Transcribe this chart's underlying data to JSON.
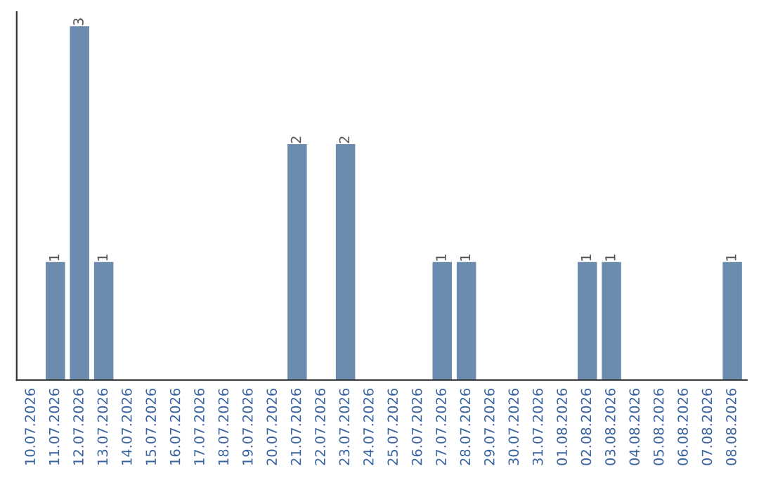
{
  "chart_data": {
    "type": "bar",
    "categories": [
      "10.07.2026",
      "11.07.2026",
      "12.07.2026",
      "13.07.2026",
      "14.07.2026",
      "15.07.2026",
      "16.07.2026",
      "17.07.2026",
      "18.07.2026",
      "19.07.2026",
      "20.07.2026",
      "21.07.2026",
      "22.07.2026",
      "23.07.2026",
      "24.07.2026",
      "25.07.2026",
      "26.07.2026",
      "27.07.2026",
      "28.07.2026",
      "29.07.2026",
      "30.07.2026",
      "31.07.2026",
      "01.08.2026",
      "02.08.2026",
      "03.08.2026",
      "04.08.2026",
      "05.08.2026",
      "06.08.2026",
      "07.08.2026",
      "08.08.2026"
    ],
    "values": [
      0,
      1,
      3,
      1,
      0,
      0,
      0,
      0,
      0,
      0,
      0,
      2,
      0,
      2,
      0,
      0,
      0,
      1,
      1,
      0,
      0,
      0,
      0,
      1,
      1,
      0,
      0,
      0,
      0,
      1
    ],
    "value_labels": [
      null,
      "1",
      "3",
      "1",
      null,
      null,
      null,
      null,
      null,
      null,
      null,
      "2",
      null,
      "2",
      null,
      null,
      null,
      "1",
      "1",
      null,
      null,
      null,
      null,
      "1",
      "1",
      null,
      null,
      null,
      null,
      "1"
    ],
    "color": "#6b8cae",
    "tick_labels": "x",
    "grid": false,
    "legend": false
  }
}
